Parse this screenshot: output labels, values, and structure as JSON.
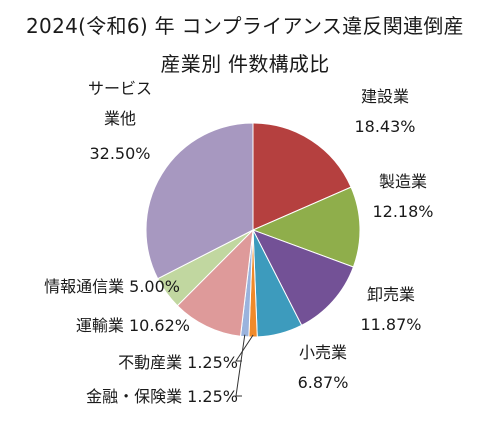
{
  "title": "2024(令和6) 年 コンプライアンス違反関連倒産",
  "subtitle": "産業別 件数構成比",
  "chart_data": {
    "type": "pie",
    "start_angle_deg": 90,
    "direction": "clockwise",
    "slices": [
      {
        "name": "建設業",
        "value": 18.43,
        "label": "18.43%",
        "color": "#b5403f"
      },
      {
        "name": "製造業",
        "value": 12.18,
        "label": "12.18%",
        "color": "#8fae4b"
      },
      {
        "name": "卸売業",
        "value": 11.87,
        "label": "11.87%",
        "color": "#735196"
      },
      {
        "name": "小売業",
        "value": 6.87,
        "label": "6.87%",
        "color": "#3d9bbd"
      },
      {
        "name": "不動産業",
        "value": 1.25,
        "label": "1.25%",
        "color": "#f08a2a"
      },
      {
        "name": "金融・保険業",
        "value": 1.25,
        "label": "1.25%",
        "color": "#9ab3dd"
      },
      {
        "name": "運輸業",
        "value": 10.62,
        "label": "10.62%",
        "color": "#de9a9a"
      },
      {
        "name": "情報通信業",
        "value": 5.0,
        "label": "5.00%",
        "color": "#c1d7a0"
      },
      {
        "name": "サービス業他",
        "value": 32.5,
        "label": "32.50%",
        "color": "#a798c0"
      }
    ]
  }
}
